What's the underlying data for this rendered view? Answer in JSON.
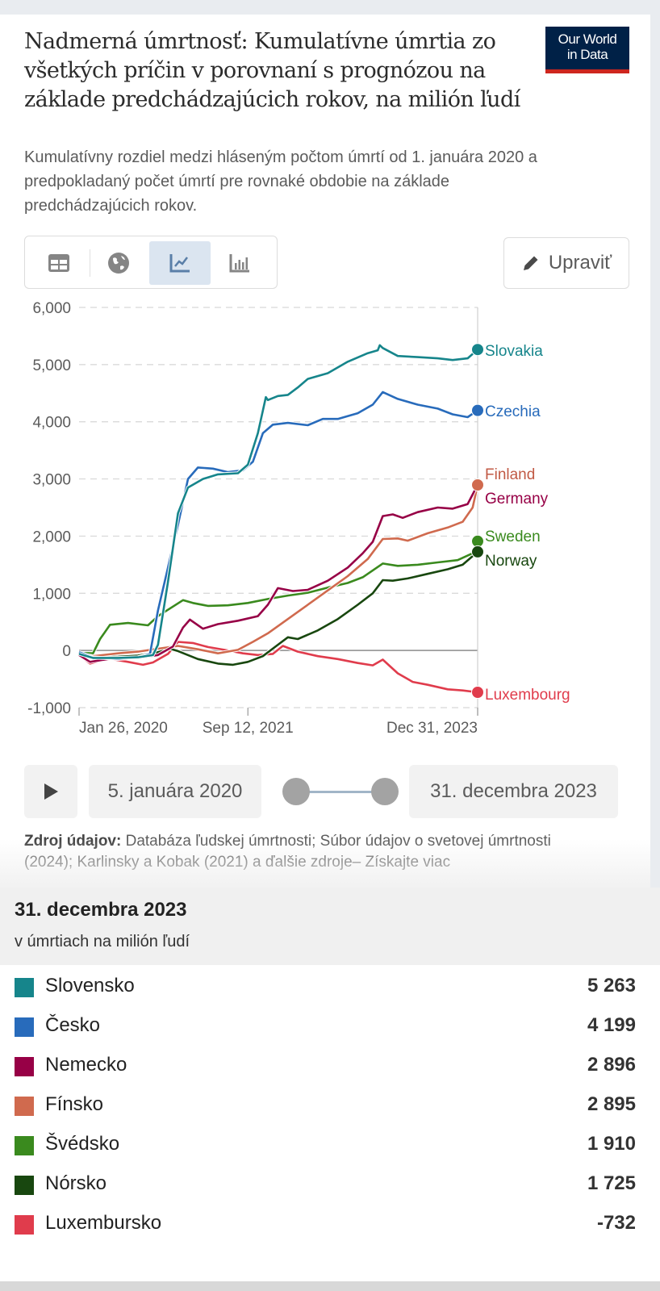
{
  "header": {
    "title": "Nadmerná úmrtnosť: Kumulatívne úmrtia zo všetkých príčin v porovnaní s prognózou na základe predchádzajúcich rokov, na milión ľudí",
    "subtitle": "Kumulatívny rozdiel medzi hláseným počtom úmrtí od 1. januára 2020 a predpokladaný počet úmrtí pre rovnaké obdobie na základe predchádzajúcich rokov.",
    "logo_line1": "Our World",
    "logo_line2": "in Data"
  },
  "toolbar": {
    "tabs": [
      {
        "name": "table",
        "icon": "table-icon",
        "active": false
      },
      {
        "name": "map",
        "icon": "globe-icon",
        "active": false
      },
      {
        "name": "chart",
        "icon": "line-chart-icon",
        "active": true
      },
      {
        "name": "bar",
        "icon": "bar-chart-icon",
        "active": false
      }
    ],
    "edit_label": "Upraviť",
    "edit_icon": "pencil-icon"
  },
  "chart_data": {
    "type": "line",
    "title": "Nadmerná úmrtnosť: Kumulatívne úmrtia zo všetkých príčin v porovnaní s prognózou na základe predchádzajúcich rokov, na milión ľudí",
    "xlabel": "",
    "ylabel": "",
    "ylim": [
      -1000,
      6000
    ],
    "xlim": [
      2020.01,
      2024.0
    ],
    "yticks": [
      {
        "value": 6000,
        "label": "6,000"
      },
      {
        "value": 5000,
        "label": "5,000"
      },
      {
        "value": 4000,
        "label": "4,000"
      },
      {
        "value": 3000,
        "label": "3,000"
      },
      {
        "value": 2000,
        "label": "2,000"
      },
      {
        "value": 1000,
        "label": "1,000"
      },
      {
        "value": 0,
        "label": "0"
      },
      {
        "value": -1000,
        "label": "-1,000"
      }
    ],
    "xticks": [
      {
        "value": 2020.07,
        "label": "Jan 26, 2020"
      },
      {
        "value": 2021.7,
        "label": "Sep 12, 2021"
      },
      {
        "value": 2024.0,
        "label": "Dec 31, 2023"
      }
    ],
    "grid": true,
    "legend": "end-labels-right",
    "series": [
      {
        "name": "Slovakia",
        "color": "#16858b",
        "label_value": 5263,
        "points": [
          [
            2020.01,
            -60
          ],
          [
            2020.15,
            -130
          ],
          [
            2020.4,
            -130
          ],
          [
            2020.6,
            -120
          ],
          [
            2020.75,
            -80
          ],
          [
            2020.8,
            100
          ],
          [
            2020.9,
            1200
          ],
          [
            2021.0,
            2400
          ],
          [
            2021.1,
            2850
          ],
          [
            2021.25,
            3000
          ],
          [
            2021.4,
            3080
          ],
          [
            2021.6,
            3100
          ],
          [
            2021.7,
            3250
          ],
          [
            2021.8,
            3800
          ],
          [
            2021.88,
            4430
          ],
          [
            2021.9,
            4380
          ],
          [
            2022.0,
            4450
          ],
          [
            2022.1,
            4470
          ],
          [
            2022.2,
            4600
          ],
          [
            2022.3,
            4750
          ],
          [
            2022.5,
            4850
          ],
          [
            2022.7,
            5050
          ],
          [
            2022.9,
            5200
          ],
          [
            2023.0,
            5250
          ],
          [
            2023.02,
            5340
          ],
          [
            2023.05,
            5290
          ],
          [
            2023.2,
            5150
          ],
          [
            2023.4,
            5130
          ],
          [
            2023.6,
            5110
          ],
          [
            2023.75,
            5080
          ],
          [
            2023.9,
            5110
          ],
          [
            2024.0,
            5263
          ]
        ]
      },
      {
        "name": "Czechia",
        "color": "#286bbb",
        "label_value": 4199,
        "points": [
          [
            2020.01,
            -30
          ],
          [
            2020.15,
            -120
          ],
          [
            2020.4,
            -150
          ],
          [
            2020.6,
            -120
          ],
          [
            2020.72,
            -60
          ],
          [
            2020.8,
            700
          ],
          [
            2020.9,
            1450
          ],
          [
            2021.0,
            2200
          ],
          [
            2021.1,
            3000
          ],
          [
            2021.2,
            3200
          ],
          [
            2021.35,
            3180
          ],
          [
            2021.5,
            3120
          ],
          [
            2021.65,
            3150
          ],
          [
            2021.75,
            3300
          ],
          [
            2021.85,
            3800
          ],
          [
            2021.95,
            3950
          ],
          [
            2022.1,
            3980
          ],
          [
            2022.3,
            3940
          ],
          [
            2022.45,
            4050
          ],
          [
            2022.6,
            4050
          ],
          [
            2022.8,
            4150
          ],
          [
            2022.95,
            4300
          ],
          [
            2023.05,
            4520
          ],
          [
            2023.2,
            4400
          ],
          [
            2023.4,
            4300
          ],
          [
            2023.6,
            4230
          ],
          [
            2023.75,
            4130
          ],
          [
            2023.9,
            4080
          ],
          [
            2024.0,
            4199
          ]
        ]
      },
      {
        "name": "Germany",
        "color": "#970046",
        "label_value": 2896,
        "points": [
          [
            2020.01,
            -80
          ],
          [
            2020.12,
            -200
          ],
          [
            2020.3,
            -150
          ],
          [
            2020.6,
            -130
          ],
          [
            2020.8,
            -80
          ],
          [
            2020.95,
            70
          ],
          [
            2021.05,
            400
          ],
          [
            2021.12,
            540
          ],
          [
            2021.25,
            380
          ],
          [
            2021.4,
            460
          ],
          [
            2021.6,
            520
          ],
          [
            2021.8,
            600
          ],
          [
            2021.9,
            800
          ],
          [
            2022.0,
            1090
          ],
          [
            2022.15,
            1040
          ],
          [
            2022.3,
            1060
          ],
          [
            2022.5,
            1220
          ],
          [
            2022.7,
            1450
          ],
          [
            2022.85,
            1700
          ],
          [
            2022.95,
            1900
          ],
          [
            2023.05,
            2350
          ],
          [
            2023.15,
            2380
          ],
          [
            2023.25,
            2320
          ],
          [
            2023.4,
            2420
          ],
          [
            2023.6,
            2500
          ],
          [
            2023.75,
            2480
          ],
          [
            2023.9,
            2560
          ],
          [
            2024.0,
            2896
          ]
        ]
      },
      {
        "name": "Finland",
        "color": "#c15065",
        "label_value": 2895,
        "points": [
          [
            2020.01,
            -60
          ],
          [
            2020.15,
            -100
          ],
          [
            2020.4,
            -50
          ],
          [
            2020.6,
            -20
          ],
          [
            2020.8,
            30
          ],
          [
            2021.0,
            80
          ],
          [
            2021.2,
            20
          ],
          [
            2021.4,
            -50
          ],
          [
            2021.6,
            10
          ],
          [
            2021.75,
            150
          ],
          [
            2021.9,
            300
          ],
          [
            2022.1,
            550
          ],
          [
            2022.3,
            800
          ],
          [
            2022.5,
            1050
          ],
          [
            2022.7,
            1300
          ],
          [
            2022.9,
            1600
          ],
          [
            2023.05,
            1950
          ],
          [
            2023.2,
            1960
          ],
          [
            2023.3,
            1920
          ],
          [
            2023.5,
            2050
          ],
          [
            2023.7,
            2150
          ],
          [
            2023.85,
            2250
          ],
          [
            2023.95,
            2500
          ],
          [
            2024.0,
            2895
          ]
        ]
      },
      {
        "name": "Sweden",
        "color": "#38aaba",
        "label_value": 1910,
        "points": [
          [
            2020.01,
            -40
          ],
          [
            2020.15,
            -50
          ],
          [
            2020.22,
            200
          ],
          [
            2020.32,
            450
          ],
          [
            2020.5,
            480
          ],
          [
            2020.7,
            440
          ],
          [
            2020.8,
            600
          ],
          [
            2021.05,
            880
          ],
          [
            2021.15,
            830
          ],
          [
            2021.3,
            780
          ],
          [
            2021.5,
            790
          ],
          [
            2021.7,
            830
          ],
          [
            2021.9,
            900
          ],
          [
            2022.1,
            960
          ],
          [
            2022.3,
            1010
          ],
          [
            2022.5,
            1100
          ],
          [
            2022.7,
            1180
          ],
          [
            2022.85,
            1280
          ],
          [
            2022.95,
            1400
          ],
          [
            2023.05,
            1520
          ],
          [
            2023.2,
            1480
          ],
          [
            2023.4,
            1500
          ],
          [
            2023.6,
            1540
          ],
          [
            2023.8,
            1580
          ],
          [
            2023.95,
            1700
          ],
          [
            2024.0,
            1910
          ]
        ]
      },
      {
        "name": "Norway",
        "color": "#18470f",
        "label_value": 1725,
        "points": [
          [
            2020.01,
            -50
          ],
          [
            2020.15,
            -120
          ],
          [
            2020.4,
            -110
          ],
          [
            2020.6,
            -90
          ],
          [
            2020.8,
            -30
          ],
          [
            2020.92,
            30
          ],
          [
            2021.0,
            -10
          ],
          [
            2021.2,
            -150
          ],
          [
            2021.4,
            -230
          ],
          [
            2021.55,
            -250
          ],
          [
            2021.7,
            -200
          ],
          [
            2021.85,
            -100
          ],
          [
            2022.0,
            100
          ],
          [
            2022.1,
            230
          ],
          [
            2022.2,
            200
          ],
          [
            2022.4,
            350
          ],
          [
            2022.6,
            550
          ],
          [
            2022.8,
            800
          ],
          [
            2022.95,
            1000
          ],
          [
            2023.05,
            1230
          ],
          [
            2023.15,
            1220
          ],
          [
            2023.3,
            1260
          ],
          [
            2023.5,
            1340
          ],
          [
            2023.7,
            1420
          ],
          [
            2023.85,
            1500
          ],
          [
            2024.0,
            1725
          ]
        ]
      },
      {
        "name": "Luxembourg",
        "color": "#e03c4c",
        "label_value": -732,
        "points": [
          [
            2020.01,
            -80
          ],
          [
            2020.12,
            -230
          ],
          [
            2020.3,
            -140
          ],
          [
            2020.5,
            -200
          ],
          [
            2020.65,
            -250
          ],
          [
            2020.75,
            -210
          ],
          [
            2020.9,
            -60
          ],
          [
            2021.0,
            150
          ],
          [
            2021.15,
            130
          ],
          [
            2021.3,
            60
          ],
          [
            2021.5,
            0
          ],
          [
            2021.65,
            -50
          ],
          [
            2021.8,
            -80
          ],
          [
            2021.95,
            -60
          ],
          [
            2022.05,
            80
          ],
          [
            2022.2,
            -20
          ],
          [
            2022.4,
            -100
          ],
          [
            2022.6,
            -150
          ],
          [
            2022.8,
            -220
          ],
          [
            2022.95,
            -260
          ],
          [
            2023.05,
            -160
          ],
          [
            2023.2,
            -400
          ],
          [
            2023.35,
            -550
          ],
          [
            2023.5,
            -600
          ],
          [
            2023.7,
            -680
          ],
          [
            2023.85,
            -700
          ],
          [
            2024.0,
            -732
          ]
        ]
      }
    ],
    "end_labels": [
      {
        "name": "Slovakia",
        "color": "#16858b"
      },
      {
        "name": "Czechia",
        "color": "#286bbb"
      },
      {
        "name": "Finland",
        "color": "#c15065"
      },
      {
        "name": "Germany",
        "color": "#970046"
      },
      {
        "name": "Sweden",
        "color": "#38aaba"
      },
      {
        "name": "Norway",
        "color": "#18470f"
      },
      {
        "name": "Luxembourg",
        "color": "#e03c4c"
      }
    ]
  },
  "timeline": {
    "play_icon": "play-icon",
    "start_date": "5. januára 2020",
    "end_date": "31. decembra 2023"
  },
  "source": {
    "label": "Zdroj údajov:",
    "text": "Databáza ľudskej úmrtnosti; Súbor údajov o svetovej úmrtnosti",
    "text2": "(2024); Karlinsky a Kobak (2021) a ďalšie zdroje– Získajte viac"
  },
  "tooltip": {
    "date": "31. decembra 2023",
    "unit": "v úmrtiach na milión ľudí",
    "rows": [
      {
        "name": "Slovensko",
        "value": "5 263",
        "color": "#16858b"
      },
      {
        "name": "Česko",
        "value": "4 199",
        "color": "#286bbb"
      },
      {
        "name": "Nemecko",
        "value": "2 896",
        "color": "#970046"
      },
      {
        "name": "Fínsko",
        "value": "2 895",
        "color": "#c15065"
      },
      {
        "name": "Švédsko",
        "value": "1 910",
        "color": "#38aaba"
      },
      {
        "name": "Nórsko",
        "value": "1 725",
        "color": "#18470f"
      },
      {
        "name": "Luxembursko",
        "value": "-732",
        "color": "#e03c4c"
      }
    ]
  }
}
